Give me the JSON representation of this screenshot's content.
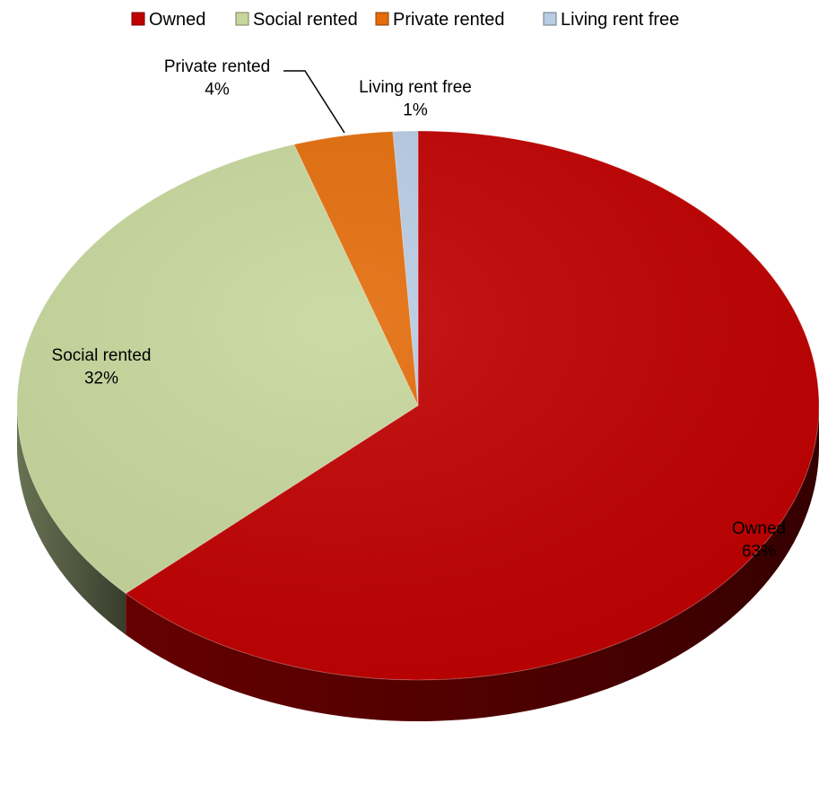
{
  "chart_data": {
    "type": "pie",
    "style": "3d",
    "legend_position": "top",
    "slices": [
      {
        "label": "Owned",
        "value": 63,
        "percent_label": "63%",
        "color": "#c00000"
      },
      {
        "label": "Social rented",
        "value": 32,
        "percent_label": "32%",
        "color": "#c7d79c"
      },
      {
        "label": "Private rented",
        "value": 4,
        "percent_label": "4%",
        "color": "#e46c0a"
      },
      {
        "label": "Living rent free",
        "value": 1,
        "percent_label": "1%",
        "color": "#b8cce4"
      }
    ]
  }
}
